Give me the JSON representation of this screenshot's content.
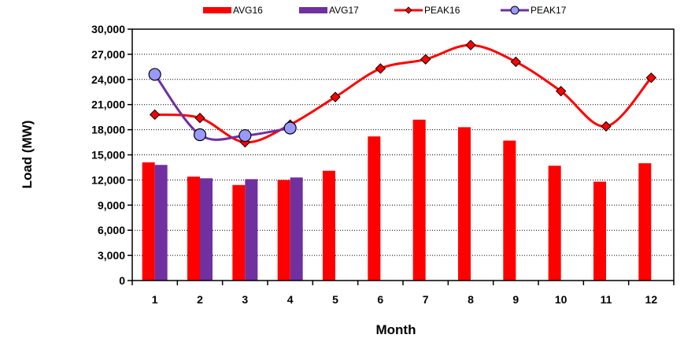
{
  "chart_data": {
    "type": "bar",
    "categories": [
      "1",
      "2",
      "3",
      "4",
      "5",
      "6",
      "7",
      "8",
      "9",
      "10",
      "11",
      "12"
    ],
    "xlabel": "Month",
    "ylabel": "Load (MW)",
    "ylim": [
      0,
      30000
    ],
    "yticks": [
      "0",
      "3,000",
      "6,000",
      "9,000",
      "12,000",
      "15,000",
      "18,000",
      "21,000",
      "24,000",
      "27,000",
      "30,000"
    ],
    "grid": "horizontal dotted",
    "legend_position": "top",
    "series": [
      {
        "name": "AVG16",
        "kind": "bar",
        "color": "#ff0000",
        "values": [
          14100,
          12400,
          11400,
          12000,
          13100,
          17200,
          19200,
          18300,
          16700,
          13700,
          11800,
          14000
        ]
      },
      {
        "name": "AVG17",
        "kind": "bar",
        "color": "#7030a0",
        "values": [
          13800,
          12200,
          12100,
          12300,
          null,
          null,
          null,
          null,
          null,
          null,
          null,
          null
        ]
      },
      {
        "name": "PEAK16",
        "kind": "line",
        "marker": "diamond",
        "color": "#ff0000",
        "values": [
          19800,
          19400,
          16500,
          18600,
          21900,
          25300,
          26400,
          28100,
          26100,
          22600,
          18400,
          24200
        ]
      },
      {
        "name": "PEAK17",
        "kind": "line",
        "marker": "circle",
        "color": "#7030a0",
        "values": [
          24600,
          17400,
          17300,
          18200,
          null,
          null,
          null,
          null,
          null,
          null,
          null,
          null
        ]
      }
    ]
  }
}
